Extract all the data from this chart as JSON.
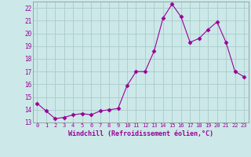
{
  "x": [
    0,
    1,
    2,
    3,
    4,
    5,
    6,
    7,
    8,
    9,
    10,
    11,
    12,
    13,
    14,
    15,
    16,
    17,
    18,
    19,
    20,
    21,
    22,
    23
  ],
  "y": [
    14.5,
    13.9,
    13.3,
    13.4,
    13.6,
    13.7,
    13.6,
    13.9,
    14.0,
    14.1,
    15.9,
    17.0,
    17.0,
    18.6,
    21.2,
    22.3,
    21.3,
    19.3,
    19.6,
    20.3,
    20.9,
    19.3,
    17.0,
    16.6
  ],
  "line_color": "#990099",
  "marker": "D",
  "marker_size": 2.5,
  "bg_color": "#cce8e8",
  "grid_color": "#aacccc",
  "xlabel": "Windchill (Refroidissement éolien,°C)",
  "xlabel_color": "#990099",
  "tick_color": "#990099",
  "ylim": [
    13,
    22.5
  ],
  "xlim": [
    -0.5,
    23.5
  ],
  "yticks": [
    13,
    14,
    15,
    16,
    17,
    18,
    19,
    20,
    21,
    22
  ],
  "xticks": [
    0,
    1,
    2,
    3,
    4,
    5,
    6,
    7,
    8,
    9,
    10,
    11,
    12,
    13,
    14,
    15,
    16,
    17,
    18,
    19,
    20,
    21,
    22,
    23
  ]
}
